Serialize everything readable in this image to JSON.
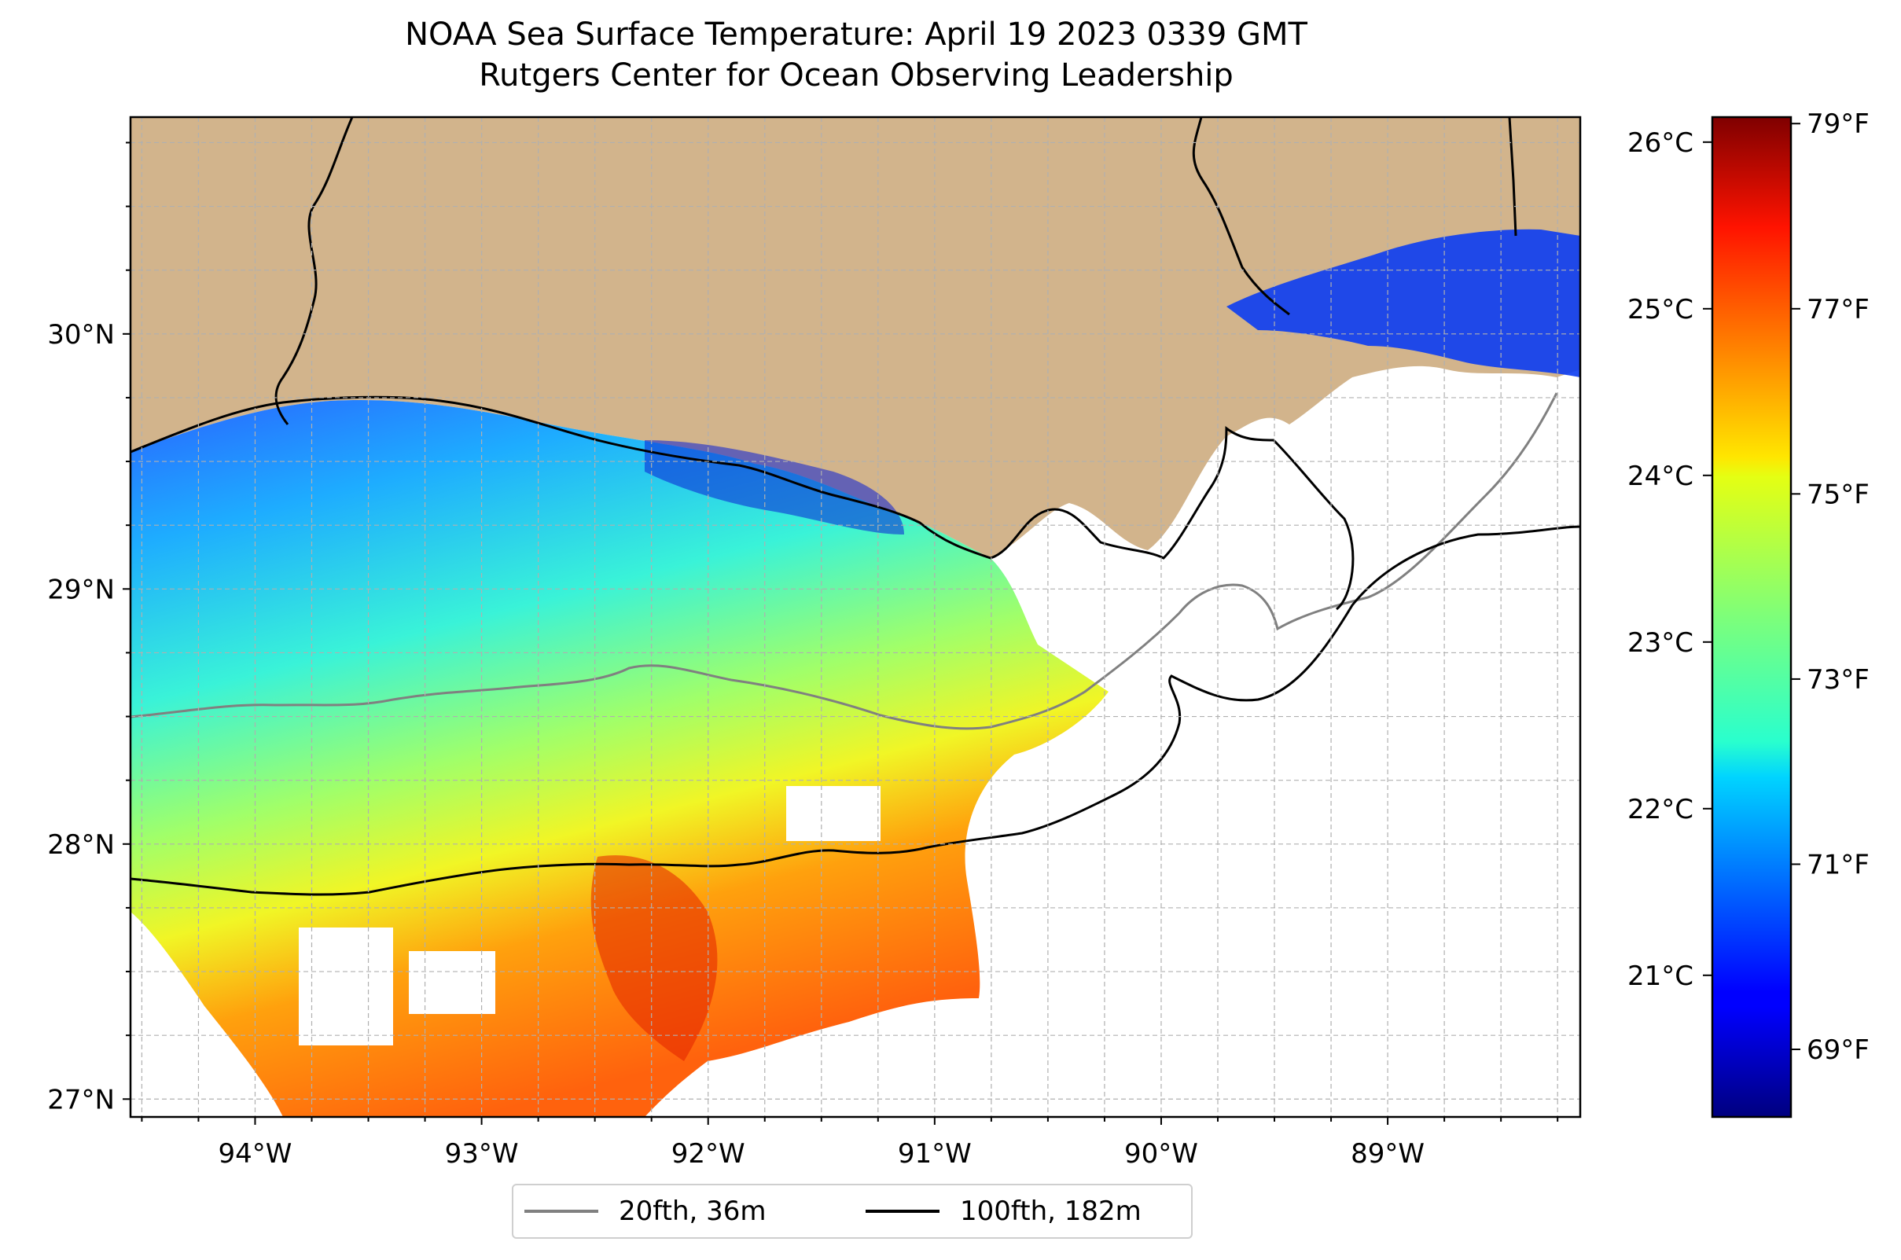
{
  "title": {
    "line1": "NOAA Sea Surface Temperature: April 19 2023 0339 GMT",
    "line2": "Rutgers Center for Ocean Observing Leadership"
  },
  "map": {
    "lon_range": [
      -94.55,
      -88.15
    ],
    "lat_range": [
      26.93,
      30.85
    ],
    "lon_ticks": [
      {
        "value": -94,
        "label": "94°W"
      },
      {
        "value": -93,
        "label": "93°W"
      },
      {
        "value": -92,
        "label": "92°W"
      },
      {
        "value": -91,
        "label": "91°W"
      },
      {
        "value": -90,
        "label": "90°W"
      },
      {
        "value": -89,
        "label": "89°W"
      }
    ],
    "lat_ticks": [
      {
        "value": 27,
        "label": "27°N"
      },
      {
        "value": 28,
        "label": "28°N"
      },
      {
        "value": 29,
        "label": "29°N"
      },
      {
        "value": 30,
        "label": "30°N"
      }
    ],
    "grid": "dashed",
    "land_color": "#d2b48c",
    "no_data_color": "#ffffff"
  },
  "colorbar": {
    "colormap": "jet",
    "celsius_range": [
      20.15,
      26.15
    ],
    "celsius_ticks": [
      {
        "value": 21,
        "label": "21°C"
      },
      {
        "value": 22,
        "label": "22°C"
      },
      {
        "value": 23,
        "label": "23°C"
      },
      {
        "value": 24,
        "label": "24°C"
      },
      {
        "value": 25,
        "label": "25°C"
      },
      {
        "value": 26,
        "label": "26°C"
      }
    ],
    "fahrenheit_ticks": [
      {
        "value": 69,
        "label": "69°F"
      },
      {
        "value": 71,
        "label": "71°F"
      },
      {
        "value": 73,
        "label": "73°F"
      },
      {
        "value": 75,
        "label": "75°F"
      },
      {
        "value": 77,
        "label": "77°F"
      },
      {
        "value": 79,
        "label": "79°F"
      }
    ]
  },
  "legend": {
    "placement": "bottom-center",
    "items": [
      {
        "label": "20fth, 36m",
        "color": "#808080"
      },
      {
        "label": "100fth, 182m",
        "color": "#000000"
      }
    ]
  }
}
